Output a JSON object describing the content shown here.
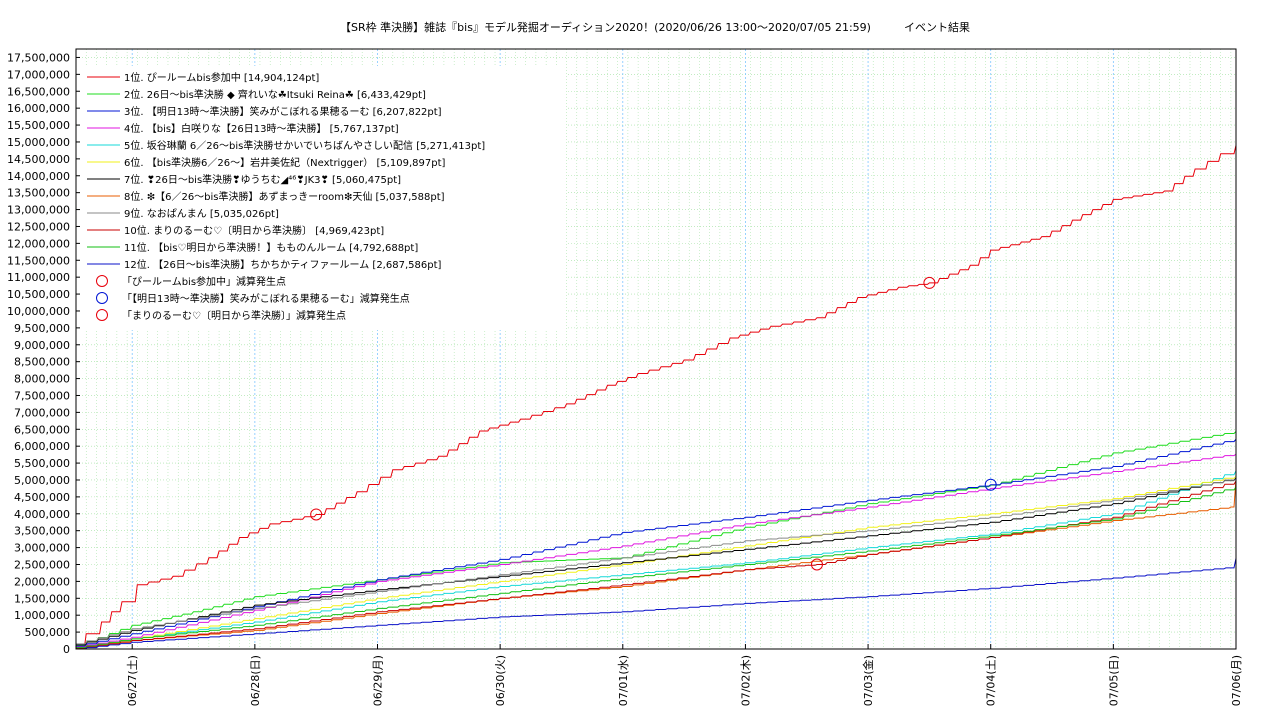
{
  "chart_data": {
    "type": "line",
    "title": "【SR枠 準決勝】雑誌『bis』モデル発掘オーディション2020！(2020/06/26 13:00～2020/07/05 21:59)　　　イベント結果",
    "xlabel": "",
    "ylabel": "",
    "x_range": [
      "2020-06-26 13:00",
      "2020-07-06 00:00"
    ],
    "xticks": [
      {
        "t": "2020-06-27 00:00",
        "label": "06/27(土)"
      },
      {
        "t": "2020-06-28 00:00",
        "label": "06/28(日)"
      },
      {
        "t": "2020-06-29 00:00",
        "label": "06/29(月)"
      },
      {
        "t": "2020-06-30 00:00",
        "label": "06/30(火)"
      },
      {
        "t": "2020-07-01 00:00",
        "label": "07/01(水)"
      },
      {
        "t": "2020-07-02 00:00",
        "label": "07/02(木)"
      },
      {
        "t": "2020-07-03 00:00",
        "label": "07/03(金)"
      },
      {
        "t": "2020-07-04 00:00",
        "label": "07/04(土)"
      },
      {
        "t": "2020-07-05 00:00",
        "label": "07/05(日)"
      },
      {
        "t": "2020-07-06 00:00",
        "label": "07/06(月)"
      }
    ],
    "ylim": [
      0,
      17750000
    ],
    "yticks": [
      "0",
      "500,000",
      "1,000,000",
      "1,500,000",
      "2,000,000",
      "2,500,000",
      "3,000,000",
      "3,500,000",
      "4,000,000",
      "4,500,000",
      "5,000,000",
      "5,500,000",
      "6,000,000",
      "6,500,000",
      "7,000,000",
      "7,500,000",
      "8,000,000",
      "8,500,000",
      "9,000,000",
      "9,500,000",
      "10,000,000",
      "10,500,000",
      "11,000,000",
      "11,500,000",
      "12,000,000",
      "12,500,000",
      "13,000,000",
      "13,500,000",
      "14,000,000",
      "14,500,000",
      "15,000,000",
      "15,500,000",
      "16,000,000",
      "16,500,000",
      "17,000,000",
      "17,500,000"
    ],
    "grid": true,
    "legend_position": "top-left",
    "series": [
      {
        "name": "1位. ぴールームbis参加中 [14,904,124pt]",
        "color": "#e8000b",
        "points": [
          [
            "2020-06-26 13:00",
            0
          ],
          [
            "2020-06-26 15:00",
            450000
          ],
          [
            "2020-06-26 18:00",
            800000
          ],
          [
            "2020-06-26 22:00",
            1400000
          ],
          [
            "2020-06-27 01:00",
            1900000
          ],
          [
            "2020-06-27 08:00",
            2150000
          ],
          [
            "2020-06-27 15:00",
            2700000
          ],
          [
            "2020-06-27 21:00",
            3300000
          ],
          [
            "2020-06-28 03:00",
            3700000
          ],
          [
            "2020-06-28 12:00",
            3980000
          ],
          [
            "2020-06-28 20:00",
            4650000
          ],
          [
            "2020-06-29 03:00",
            5300000
          ],
          [
            "2020-06-29 12:00",
            5700000
          ],
          [
            "2020-06-29 20:00",
            6450000
          ],
          [
            "2020-06-30 04:00",
            6800000
          ],
          [
            "2020-06-30 13:00",
            7250000
          ],
          [
            "2020-06-30 21:00",
            7800000
          ],
          [
            "2020-07-01 03:00",
            8150000
          ],
          [
            "2020-07-01 12:00",
            8550000
          ],
          [
            "2020-07-01 21:00",
            9200000
          ],
          [
            "2020-07-02 05:00",
            9550000
          ],
          [
            "2020-07-02 14:00",
            9800000
          ],
          [
            "2020-07-02 22:00",
            10400000
          ],
          [
            "2020-07-03 06:00",
            10700000
          ],
          [
            "2020-07-03 12:00",
            10830000
          ],
          [
            "2020-07-03 20:00",
            11350000
          ],
          [
            "2020-07-04 00:00",
            11800000
          ],
          [
            "2020-07-04 10:00",
            12200000
          ],
          [
            "2020-07-04 18:00",
            12850000
          ],
          [
            "2020-07-05 00:00",
            13300000
          ],
          [
            "2020-07-05 10:00",
            13550000
          ],
          [
            "2020-07-05 16:00",
            14200000
          ],
          [
            "2020-07-05 21:00",
            14650000
          ],
          [
            "2020-07-06 00:00",
            14904124
          ]
        ]
      },
      {
        "name": "2位. 26日～bis準決勝 ◆ 齊れいな☘Itsuki Reina☘ [6,433,429pt]",
        "color": "#1fdc1f",
        "points": [
          [
            "2020-06-26 13:00",
            100000
          ],
          [
            "2020-06-27 00:00",
            700000
          ],
          [
            "2020-06-27 12:00",
            1100000
          ],
          [
            "2020-06-28 00:00",
            1550000
          ],
          [
            "2020-06-29 00:00",
            2050000
          ],
          [
            "2020-06-30 00:00",
            2550000
          ],
          [
            "2020-07-01 00:00",
            2700000
          ],
          [
            "2020-07-02 00:00",
            3600000
          ],
          [
            "2020-07-03 00:00",
            4300000
          ],
          [
            "2020-07-04 00:00",
            4850000
          ],
          [
            "2020-07-05 00:00",
            5800000
          ],
          [
            "2020-07-06 00:00",
            6433429
          ]
        ]
      },
      {
        "name": "3位. 【明日13時～準決勝】笑みがこぼれる果穂るーむ [6,207,822pt]",
        "color": "#0015d4",
        "points": [
          [
            "2020-06-26 13:00",
            80000
          ],
          [
            "2020-06-27 00:00",
            450000
          ],
          [
            "2020-06-28 00:00",
            1250000
          ],
          [
            "2020-06-29 00:00",
            2050000
          ],
          [
            "2020-06-30 00:00",
            2650000
          ],
          [
            "2020-07-01 00:00",
            3450000
          ],
          [
            "2020-07-02 00:00",
            3900000
          ],
          [
            "2020-07-03 00:00",
            4400000
          ],
          [
            "2020-07-04 00:00",
            4860000
          ],
          [
            "2020-07-05 00:00",
            5400000
          ],
          [
            "2020-07-06 00:00",
            6207822
          ]
        ]
      },
      {
        "name": "4位. 【bis】白咲りな【26日13時～準決勝】 [5,767,137pt]",
        "color": "#e016e0",
        "points": [
          [
            "2020-06-26 13:00",
            60000
          ],
          [
            "2020-06-27 00:00",
            350000
          ],
          [
            "2020-06-28 00:00",
            1150000
          ],
          [
            "2020-06-29 00:00",
            2000000
          ],
          [
            "2020-06-30 00:00",
            2500000
          ],
          [
            "2020-07-01 00:00",
            3050000
          ],
          [
            "2020-07-02 00:00",
            3700000
          ],
          [
            "2020-07-03 00:00",
            4200000
          ],
          [
            "2020-07-04 00:00",
            4750000
          ],
          [
            "2020-07-05 00:00",
            5250000
          ],
          [
            "2020-07-06 00:00",
            5767137
          ]
        ]
      },
      {
        "name": "5位. 坂谷琳蘭 6／26～bis準決勝せかいでいちばんやさしい配信 [5,271,413pt]",
        "color": "#16d9d9",
        "points": [
          [
            "2020-06-26 13:00",
            20000
          ],
          [
            "2020-06-27 00:00",
            300000
          ],
          [
            "2020-06-28 00:00",
            800000
          ],
          [
            "2020-06-29 00:00",
            1400000
          ],
          [
            "2020-06-30 00:00",
            1850000
          ],
          [
            "2020-07-01 00:00",
            2200000
          ],
          [
            "2020-07-02 00:00",
            2550000
          ],
          [
            "2020-07-03 00:00",
            3000000
          ],
          [
            "2020-07-04 00:00",
            3400000
          ],
          [
            "2020-07-05 00:00",
            4000000
          ],
          [
            "2020-07-06 00:00",
            5271413
          ]
        ]
      },
      {
        "name": "6位. 【bis準決勝6／26～】岩井美佐紀（Nextrigger） [5,109,897pt]",
        "color": "#f2f21a",
        "points": [
          [
            "2020-06-26 13:00",
            30000
          ],
          [
            "2020-06-27 00:00",
            300000
          ],
          [
            "2020-06-28 00:00",
            900000
          ],
          [
            "2020-06-29 00:00",
            1500000
          ],
          [
            "2020-06-30 00:00",
            2000000
          ],
          [
            "2020-07-01 00:00",
            2500000
          ],
          [
            "2020-07-02 00:00",
            3050000
          ],
          [
            "2020-07-03 00:00",
            3600000
          ],
          [
            "2020-07-04 00:00",
            4000000
          ],
          [
            "2020-07-05 00:00",
            4450000
          ],
          [
            "2020-07-06 00:00",
            5109897
          ]
        ]
      },
      {
        "name": "7位. ❣26日～bis準決勝❣ゆうちむ◢⁴⁶❣JK3❣ [5,060,475pt]",
        "color": "#000000",
        "points": [
          [
            "2020-06-26 13:00",
            120000
          ],
          [
            "2020-06-27 00:00",
            550000
          ],
          [
            "2020-06-28 00:00",
            1300000
          ],
          [
            "2020-06-29 00:00",
            1750000
          ],
          [
            "2020-06-30 00:00",
            2150000
          ],
          [
            "2020-07-01 00:00",
            2550000
          ],
          [
            "2020-07-02 00:00",
            2950000
          ],
          [
            "2020-07-03 00:00",
            3350000
          ],
          [
            "2020-07-04 00:00",
            3750000
          ],
          [
            "2020-07-05 00:00",
            4300000
          ],
          [
            "2020-07-06 00:00",
            5060475
          ]
        ]
      },
      {
        "name": "8位. ❇︎【6／26～bis準決勝】あずまっきーroom❇︎天仙 [5,037,588pt]",
        "color": "#e85c00",
        "points": [
          [
            "2020-06-26 13:00",
            10000
          ],
          [
            "2020-06-27 00:00",
            250000
          ],
          [
            "2020-06-28 00:00",
            550000
          ],
          [
            "2020-06-29 00:00",
            1050000
          ],
          [
            "2020-06-30 00:00",
            1500000
          ],
          [
            "2020-07-01 00:00",
            1850000
          ],
          [
            "2020-07-02 00:00",
            2350000
          ],
          [
            "2020-07-03 00:00",
            2800000
          ],
          [
            "2020-07-04 00:00",
            3300000
          ],
          [
            "2020-07-05 00:00",
            3800000
          ],
          [
            "2020-07-05 23:00",
            4200000
          ],
          [
            "2020-07-06 00:00",
            5037588
          ]
        ]
      },
      {
        "name": "9位. なおぱんまん [5,035,026pt]",
        "color": "#8a8a8a",
        "points": [
          [
            "2020-06-26 13:00",
            150000
          ],
          [
            "2020-06-27 00:00",
            600000
          ],
          [
            "2020-06-28 00:00",
            1200000
          ],
          [
            "2020-06-29 00:00",
            1700000
          ],
          [
            "2020-06-30 00:00",
            2200000
          ],
          [
            "2020-07-01 00:00",
            2700000
          ],
          [
            "2020-07-02 00:00",
            3200000
          ],
          [
            "2020-07-03 00:00",
            3500000
          ],
          [
            "2020-07-04 00:00",
            3900000
          ],
          [
            "2020-07-05 00:00",
            4400000
          ],
          [
            "2020-07-06 00:00",
            5035026
          ]
        ]
      },
      {
        "name": "10位. まりのるーむ♡〔明日から準決勝〕 [4,969,423pt]",
        "color": "#c80000",
        "points": [
          [
            "2020-06-26 13:00",
            20000
          ],
          [
            "2020-06-27 00:00",
            250000
          ],
          [
            "2020-06-28 00:00",
            600000
          ],
          [
            "2020-06-29 00:00",
            1100000
          ],
          [
            "2020-06-30 00:00",
            1500000
          ],
          [
            "2020-07-01 00:00",
            1900000
          ],
          [
            "2020-07-02 00:00",
            2350000
          ],
          [
            "2020-07-02 14:00",
            2500000
          ],
          [
            "2020-07-03 00:00",
            2800000
          ],
          [
            "2020-07-04 00:00",
            3300000
          ],
          [
            "2020-07-05 00:00",
            3900000
          ],
          [
            "2020-07-06 00:00",
            4969423
          ]
        ]
      },
      {
        "name": "11位. 【bis♡明日から準決勝！】もものんルーム [4,792,688pt]",
        "color": "#13bf13",
        "points": [
          [
            "2020-06-26 13:00",
            40000
          ],
          [
            "2020-06-27 00:00",
            300000
          ],
          [
            "2020-06-28 00:00",
            700000
          ],
          [
            "2020-06-29 00:00",
            1200000
          ],
          [
            "2020-06-30 00:00",
            1650000
          ],
          [
            "2020-07-01 00:00",
            2100000
          ],
          [
            "2020-07-02 00:00",
            2500000
          ],
          [
            "2020-07-03 00:00",
            2900000
          ],
          [
            "2020-07-04 00:00",
            3350000
          ],
          [
            "2020-07-05 00:00",
            3850000
          ],
          [
            "2020-07-06 00:00",
            4792688
          ]
        ]
      },
      {
        "name": "12位. 【26日～bis準決勝】ちかちかティファールーム [2,687,586pt]",
        "color": "#0a10c8",
        "points": [
          [
            "2020-06-26 13:00",
            0
          ],
          [
            "2020-06-27 00:00",
            200000
          ],
          [
            "2020-06-28 00:00",
            450000
          ],
          [
            "2020-06-29 00:00",
            700000
          ],
          [
            "2020-06-30 00:00",
            950000
          ],
          [
            "2020-07-01 00:00",
            1100000
          ],
          [
            "2020-07-02 00:00",
            1350000
          ],
          [
            "2020-07-03 00:00",
            1550000
          ],
          [
            "2020-07-04 00:00",
            1800000
          ],
          [
            "2020-07-05 00:00",
            2100000
          ],
          [
            "2020-07-05 22:00",
            2400000
          ],
          [
            "2020-07-06 00:00",
            2687586
          ]
        ]
      }
    ],
    "markers": [
      {
        "name": "「ぴールームbis参加中」減算発生点",
        "color": "#e8000b",
        "points": [
          [
            "2020-06-28 12:00",
            3980000
          ],
          [
            "2020-07-03 12:00",
            10830000
          ]
        ]
      },
      {
        "name": "「【明日13時～準決勝】笑みがこぼれる果穂るーむ」減算発生点",
        "color": "#0015d4",
        "points": [
          [
            "2020-07-04 00:00",
            4860000
          ]
        ]
      },
      {
        "name": "「まりのるーむ♡〔明日から準決勝〕」減算発生点",
        "color": "#e8000b",
        "points": [
          [
            "2020-07-02 14:00",
            2500000
          ]
        ]
      }
    ]
  }
}
